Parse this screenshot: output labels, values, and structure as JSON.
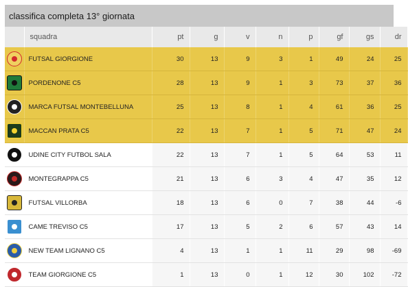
{
  "title": "classifica completa 13° giornata",
  "headers": {
    "team": "squadra",
    "pt": "pt",
    "g": "g",
    "v": "v",
    "n": "n",
    "p": "p",
    "gf": "gf",
    "gs": "gs",
    "dr": "dr"
  },
  "rows": [
    {
      "team": "FUTSAL GIORGIONE",
      "pt": "30",
      "g": "13",
      "v": "9",
      "n": "3",
      "p": "1",
      "gf": "49",
      "gs": "24",
      "dr": "25",
      "logo": "futsal-giorgione-logo",
      "logo_color": "#f0d060",
      "accent": "#d22b2b"
    },
    {
      "team": "PORDENONE C5",
      "pt": "28",
      "g": "13",
      "v": "9",
      "n": "1",
      "p": "3",
      "gf": "73",
      "gs": "37",
      "dr": "36",
      "logo": "pordenone-c5-logo",
      "logo_color": "#1f7a3a",
      "accent": "#111111"
    },
    {
      "team": "MARCA FUTSAL MONTEBELLUNA",
      "pt": "25",
      "g": "13",
      "v": "8",
      "n": "1",
      "p": "4",
      "gf": "61",
      "gs": "36",
      "dr": "25",
      "logo": "marca-futsal-logo",
      "logo_color": "#222222",
      "accent": "#ffffff"
    },
    {
      "team": "MACCAN PRATA C5",
      "pt": "22",
      "g": "13",
      "v": "7",
      "n": "1",
      "p": "5",
      "gf": "71",
      "gs": "47",
      "dr": "24",
      "logo": "maccan-prata-logo",
      "logo_color": "#1c3b1c",
      "accent": "#f2d230"
    },
    {
      "team": "UDINE CITY FUTBOL SALA",
      "pt": "22",
      "g": "13",
      "v": "7",
      "n": "1",
      "p": "5",
      "gf": "64",
      "gs": "53",
      "dr": "11",
      "logo": "udine-city-logo",
      "logo_color": "#111111",
      "accent": "#ffffff"
    },
    {
      "team": "MONTEGRAPPA C5",
      "pt": "21",
      "g": "13",
      "v": "6",
      "n": "3",
      "p": "4",
      "gf": "47",
      "gs": "35",
      "dr": "12",
      "logo": "montegrappa-logo",
      "logo_color": "#2a1a1a",
      "accent": "#c42a2a"
    },
    {
      "team": "FUTSAL VILLORBA",
      "pt": "18",
      "g": "13",
      "v": "6",
      "n": "0",
      "p": "7",
      "gf": "38",
      "gs": "44",
      "dr": "-6",
      "logo": "futsal-villorba-logo",
      "logo_color": "#d8b83a",
      "accent": "#222222"
    },
    {
      "team": "CAME TREVISO C5",
      "pt": "17",
      "g": "13",
      "v": "5",
      "n": "2",
      "p": "6",
      "gf": "57",
      "gs": "43",
      "dr": "14",
      "logo": "came-treviso-logo",
      "logo_color": "#3a8fd0",
      "accent": "#ffffff"
    },
    {
      "team": "NEW TEAM LIGNANO C5",
      "pt": "4",
      "g": "13",
      "v": "1",
      "n": "1",
      "p": "11",
      "gf": "29",
      "gs": "98",
      "dr": "-69",
      "logo": "new-team-lignano-logo",
      "logo_color": "#2a5ca8",
      "accent": "#f0d040"
    },
    {
      "team": "TEAM GIORGIONE C5",
      "pt": "1",
      "g": "13",
      "v": "0",
      "n": "1",
      "p": "12",
      "gf": "30",
      "gs": "102",
      "dr": "-72",
      "logo": "team-giorgione-logo",
      "logo_color": "#c0282d",
      "accent": "#ffffff"
    }
  ]
}
